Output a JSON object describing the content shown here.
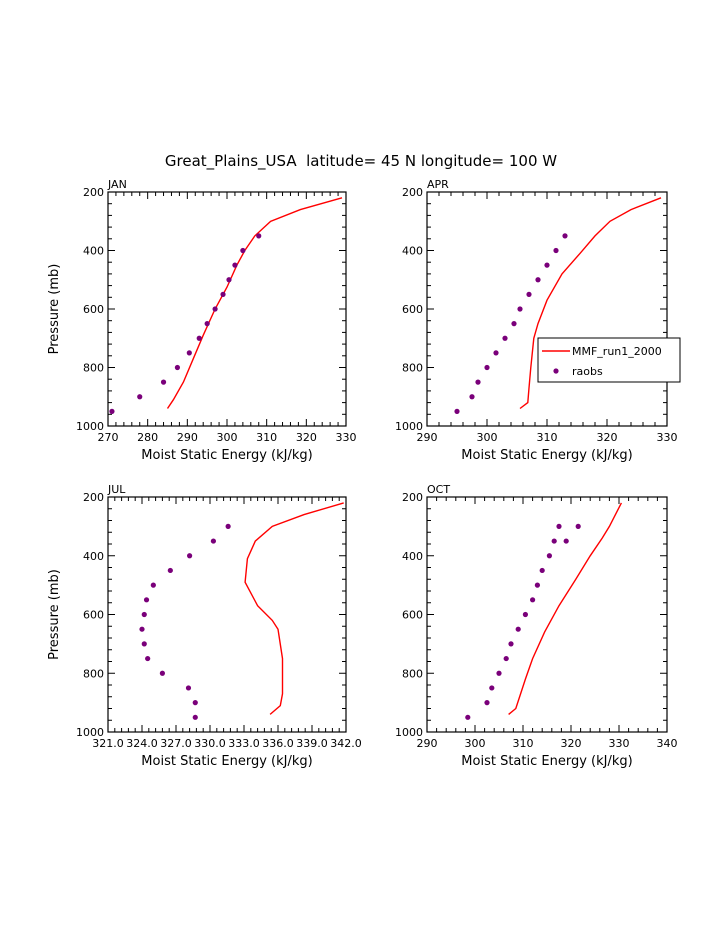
{
  "figure": {
    "title": "Great_Plains_USA  latitude= 45 N longitude= 100 W",
    "legend": {
      "series": [
        "MMF_run1_2000",
        "raobs"
      ],
      "location": "inside APR panel, right"
    }
  },
  "colors": {
    "model": "#ff0000",
    "obs": "#7a007a",
    "axes": "#000000"
  },
  "chart_data": [
    {
      "type": "line+scatter",
      "panel": "JAN",
      "title": "JAN",
      "xlabel": "Moist Static Energy (kJ/kg)",
      "ylabel": "Pressure (mb)",
      "xlim": [
        270,
        330
      ],
      "ylim": [
        1000,
        200
      ],
      "y_inverted": true,
      "xticks": [
        270,
        280,
        290,
        300,
        310,
        320,
        330
      ],
      "xtick_labels": [
        "270",
        "280",
        "290",
        "300",
        "310",
        "320",
        "330"
      ],
      "yticks": [
        200,
        400,
        600,
        800,
        1000
      ],
      "yaxis_labels": true,
      "show_legend": false,
      "series": [
        {
          "name": "MMF_run1_2000",
          "kind": "line",
          "x": [
            285,
            286.5,
            289,
            291.5,
            294,
            297,
            300,
            302.5,
            304.5,
            307,
            311,
            318.5,
            329
          ],
          "y": [
            940,
            910,
            850,
            770,
            690,
            600,
            525,
            450,
            400,
            350,
            300,
            260,
            220
          ]
        },
        {
          "name": "raobs",
          "kind": "scatter",
          "x": [
            271,
            278,
            284,
            287.5,
            290.5,
            293,
            295,
            297,
            299,
            300.5,
            302,
            304,
            308
          ],
          "y": [
            950,
            900,
            850,
            800,
            750,
            700,
            650,
            600,
            550,
            500,
            450,
            400,
            350
          ]
        }
      ]
    },
    {
      "type": "line+scatter",
      "panel": "APR",
      "title": "APR",
      "xlabel": "Moist Static Energy (kJ/kg)",
      "ylabel": "",
      "xlim": [
        290,
        330
      ],
      "ylim": [
        1000,
        200
      ],
      "y_inverted": true,
      "xticks": [
        290,
        300,
        310,
        320,
        330
      ],
      "xtick_labels": [
        "290",
        "300",
        "310",
        "320",
        "330"
      ],
      "yticks": [
        200,
        400,
        600,
        800,
        1000
      ],
      "yaxis_labels": true,
      "show_legend": true,
      "series": [
        {
          "name": "MMF_run1_2000",
          "kind": "line",
          "x": [
            305.5,
            306.8,
            307,
            307.3,
            307.8,
            308.5,
            310,
            312.5,
            315.5,
            318,
            320.5,
            324,
            329
          ],
          "y": [
            940,
            920,
            870,
            800,
            700,
            650,
            570,
            480,
            410,
            350,
            300,
            260,
            220
          ]
        },
        {
          "name": "raobs",
          "kind": "scatter",
          "x": [
            295,
            297.5,
            298.5,
            300,
            301.5,
            303,
            304.5,
            305.5,
            307,
            308.5,
            310,
            311.5,
            313
          ],
          "y": [
            950,
            900,
            850,
            800,
            750,
            700,
            650,
            600,
            550,
            500,
            450,
            400,
            350
          ]
        }
      ]
    },
    {
      "type": "line+scatter",
      "panel": "JUL",
      "title": "JUL",
      "xlabel": "Moist Static Energy (kJ/kg)",
      "ylabel": "Pressure (mb)",
      "xlim": [
        321.0,
        342.0
      ],
      "ylim": [
        1000,
        200
      ],
      "y_inverted": true,
      "xticks": [
        321,
        324,
        327,
        330,
        333,
        336,
        339,
        342
      ],
      "xtick_labels": [
        "321.0",
        "324.0",
        "327.0",
        "330.0",
        "333.0",
        "336.0",
        "339.0",
        "342.0"
      ],
      "yticks": [
        200,
        400,
        600,
        800,
        1000
      ],
      "yaxis_labels": true,
      "show_legend": false,
      "series": [
        {
          "name": "MMF_run1_2000",
          "kind": "line",
          "x": [
            335.3,
            336.2,
            336.4,
            336.4,
            336.0,
            335.5,
            334.2,
            333.1,
            333.3,
            334.0,
            335.5,
            338.3,
            341.8
          ],
          "y": [
            940,
            910,
            870,
            750,
            650,
            620,
            570,
            490,
            410,
            350,
            300,
            260,
            220
          ]
        },
        {
          "name": "raobs",
          "kind": "scatter",
          "x": [
            328.7,
            328.7,
            328.1,
            325.8,
            324.5,
            324.2,
            324.0,
            324.2,
            324.4,
            325.0,
            326.5,
            328.2,
            330.3,
            331.6
          ],
          "y": [
            950,
            900,
            850,
            800,
            750,
            700,
            650,
            600,
            550,
            500,
            450,
            400,
            350,
            300
          ]
        }
      ]
    },
    {
      "type": "line+scatter",
      "panel": "OCT",
      "title": "OCT",
      "xlabel": "Moist Static Energy (kJ/kg)",
      "ylabel": "",
      "xlim": [
        290,
        340
      ],
      "ylim": [
        1000,
        200
      ],
      "y_inverted": true,
      "xticks": [
        290,
        300,
        310,
        320,
        330,
        340
      ],
      "xtick_labels": [
        "290",
        "300",
        "310",
        "320",
        "330",
        "340"
      ],
      "yticks": [
        200,
        400,
        600,
        800,
        1000
      ],
      "yaxis_labels": true,
      "show_legend": false,
      "series": [
        {
          "name": "MMF_run1_2000",
          "kind": "line",
          "x": [
            307,
            308.5,
            310.5,
            312,
            314.5,
            317.5,
            321,
            324,
            326.5,
            328,
            330.5
          ],
          "y": [
            940,
            920,
            820,
            750,
            660,
            570,
            480,
            400,
            340,
            300,
            220
          ]
        },
        {
          "name": "raobs",
          "kind": "scatter",
          "x": [
            298.5,
            302.5,
            303.5,
            305,
            306.5,
            307.5,
            309,
            310.5,
            312,
            313,
            314,
            315.5,
            316.5,
            317.5,
            319,
            321.5
          ],
          "y": [
            950,
            900,
            850,
            800,
            750,
            700,
            650,
            600,
            550,
            500,
            450,
            400,
            350,
            300,
            350,
            300
          ]
        }
      ]
    }
  ]
}
